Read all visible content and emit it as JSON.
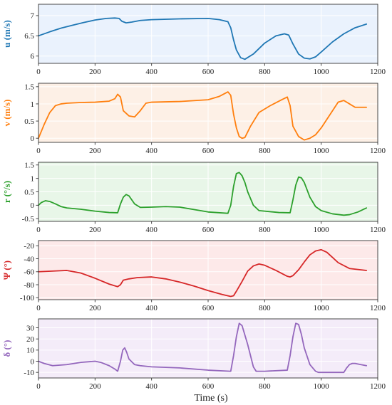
{
  "figure": {
    "xlabel": "Time (s)"
  },
  "chart_data": [
    {
      "type": "line",
      "ylabel": "u (m/s)",
      "color": "#1f77b4",
      "bg": "#eaf2fd",
      "xlim": [
        0,
        1200
      ],
      "ylim": [
        5.82,
        7.28
      ],
      "xticks": [
        0,
        200,
        400,
        600,
        800,
        1000,
        1200
      ],
      "yticks": [
        6,
        6.5,
        7
      ],
      "yticklabels": [
        "6",
        "6.5",
        "7"
      ],
      "series": [
        {
          "x": [
            0,
            40,
            80,
            120,
            160,
            200,
            240,
            270,
            285,
            295,
            310,
            330,
            360,
            400,
            500,
            600,
            640,
            670,
            680,
            690,
            700,
            715,
            730,
            760,
            800,
            840,
            870,
            885,
            900,
            920,
            940,
            960,
            980,
            1000,
            1040,
            1080,
            1120,
            1160
          ],
          "y": [
            6.5,
            6.6,
            6.69,
            6.76,
            6.83,
            6.89,
            6.93,
            6.94,
            6.93,
            6.86,
            6.82,
            6.84,
            6.88,
            6.9,
            6.92,
            6.93,
            6.9,
            6.85,
            6.7,
            6.4,
            6.15,
            5.96,
            5.92,
            6.05,
            6.32,
            6.5,
            6.55,
            6.52,
            6.3,
            6.05,
            5.95,
            5.93,
            5.98,
            6.1,
            6.35,
            6.55,
            6.7,
            6.79
          ]
        }
      ]
    },
    {
      "type": "line",
      "ylabel": "v (m/s)",
      "color": "#ff7f0e",
      "bg": "#fdf0e6",
      "xlim": [
        0,
        1200
      ],
      "ylim": [
        -0.12,
        1.6
      ],
      "xticks": [
        0,
        200,
        400,
        600,
        800,
        1000,
        1200
      ],
      "yticks": [
        0,
        0.5,
        1,
        1.5
      ],
      "yticklabels": [
        "0",
        "0.5",
        "1",
        "1.5"
      ],
      "series": [
        {
          "x": [
            0,
            20,
            40,
            60,
            80,
            100,
            150,
            200,
            250,
            270,
            280,
            290,
            300,
            320,
            340,
            360,
            380,
            400,
            500,
            600,
            640,
            670,
            680,
            690,
            700,
            710,
            720,
            730,
            750,
            780,
            820,
            860,
            880,
            890,
            900,
            920,
            940,
            960,
            980,
            1000,
            1040,
            1060,
            1080,
            1100,
            1120,
            1160
          ],
          "y": [
            0.0,
            0.4,
            0.75,
            0.95,
            1.0,
            1.02,
            1.04,
            1.05,
            1.08,
            1.15,
            1.28,
            1.2,
            0.8,
            0.65,
            0.62,
            0.8,
            1.02,
            1.05,
            1.07,
            1.12,
            1.22,
            1.35,
            1.25,
            0.7,
            0.3,
            0.05,
            0.0,
            0.02,
            0.35,
            0.75,
            0.95,
            1.12,
            1.2,
            0.95,
            0.35,
            0.05,
            -0.05,
            0.0,
            0.1,
            0.3,
            0.8,
            1.05,
            1.1,
            1.0,
            0.9,
            0.9
          ]
        }
      ]
    },
    {
      "type": "line",
      "ylabel": "r (°/s)",
      "color": "#2ca02c",
      "bg": "#e8f6e8",
      "xlim": [
        0,
        1200
      ],
      "ylim": [
        -0.6,
        1.6
      ],
      "xticks": [
        0,
        200,
        400,
        600,
        800,
        1000,
        1200
      ],
      "yticks": [
        -0.5,
        0,
        0.5,
        1,
        1.5
      ],
      "yticklabels": [
        "-0.5",
        "0",
        "0.5",
        "1",
        "1.5"
      ],
      "series": [
        {
          "x": [
            0,
            10,
            25,
            40,
            60,
            80,
            100,
            150,
            200,
            250,
            280,
            290,
            300,
            310,
            320,
            340,
            360,
            400,
            450,
            500,
            600,
            670,
            680,
            690,
            700,
            710,
            720,
            730,
            740,
            760,
            780,
            850,
            890,
            900,
            910,
            920,
            930,
            940,
            960,
            980,
            1000,
            1040,
            1080,
            1100,
            1130,
            1160
          ],
          "y": [
            0.0,
            0.1,
            0.17,
            0.14,
            0.05,
            -0.05,
            -0.1,
            -0.15,
            -0.22,
            -0.27,
            -0.28,
            0.05,
            0.3,
            0.4,
            0.35,
            0.05,
            -0.08,
            -0.07,
            -0.05,
            -0.07,
            -0.25,
            -0.3,
            0.0,
            0.7,
            1.18,
            1.22,
            1.1,
            0.85,
            0.5,
            0.0,
            -0.2,
            -0.27,
            -0.28,
            0.2,
            0.75,
            1.05,
            1.02,
            0.85,
            0.3,
            -0.05,
            -0.2,
            -0.32,
            -0.37,
            -0.35,
            -0.25,
            -0.1
          ]
        }
      ]
    },
    {
      "type": "line",
      "ylabel": "Ψ (°)",
      "color": "#d62728",
      "bg": "#fde9e9",
      "xlim": [
        0,
        1200
      ],
      "ylim": [
        -103,
        -12
      ],
      "xticks": [
        0,
        200,
        400,
        600,
        800,
        1000,
        1200
      ],
      "yticks": [
        -100,
        -80,
        -60,
        -40,
        -20
      ],
      "yticklabels": [
        "-100",
        "-80",
        "-60",
        "-40",
        "-20"
      ],
      "series": [
        {
          "x": [
            0,
            50,
            100,
            150,
            200,
            250,
            280,
            290,
            300,
            320,
            350,
            400,
            450,
            500,
            550,
            600,
            650,
            680,
            690,
            700,
            720,
            740,
            760,
            780,
            800,
            840,
            880,
            890,
            900,
            920,
            940,
            960,
            980,
            1000,
            1020,
            1040,
            1060,
            1100,
            1160
          ],
          "y": [
            -60,
            -59,
            -58,
            -62,
            -70,
            -79,
            -83,
            -80,
            -73,
            -71,
            -69,
            -68,
            -71,
            -76,
            -82,
            -89,
            -95,
            -98,
            -97,
            -90,
            -75,
            -59,
            -51,
            -48,
            -50,
            -58,
            -67,
            -68,
            -66,
            -57,
            -45,
            -34,
            -28,
            -26,
            -30,
            -38,
            -46,
            -55,
            -58
          ]
        }
      ]
    },
    {
      "type": "line",
      "ylabel": "δ (°)",
      "color": "#9467bd",
      "bg": "#f4ecf9",
      "xlim": [
        0,
        1200
      ],
      "ylim": [
        -15,
        38
      ],
      "xticks": [
        0,
        200,
        400,
        600,
        800,
        1000,
        1200
      ],
      "yticks": [
        -10,
        0,
        10,
        20,
        30
      ],
      "yticklabels": [
        "-10",
        "0",
        "10",
        "20",
        "30"
      ],
      "series": [
        {
          "x": [
            0,
            20,
            50,
            100,
            150,
            200,
            220,
            250,
            270,
            280,
            290,
            298,
            305,
            312,
            320,
            340,
            360,
            400,
            500,
            600,
            680,
            690,
            700,
            710,
            720,
            740,
            760,
            770,
            780,
            800,
            880,
            890,
            900,
            910,
            920,
            930,
            940,
            960,
            980,
            990,
            1000,
            1050,
            1080,
            1090,
            1100,
            1110,
            1120,
            1140,
            1160
          ],
          "y": [
            0,
            -2,
            -4,
            -3,
            -1,
            0,
            -1,
            -4,
            -7,
            -9,
            0,
            10,
            12,
            8,
            2,
            -3,
            -4,
            -5,
            -6,
            -8,
            -9,
            5,
            22,
            34,
            32,
            15,
            -5,
            -9,
            -9,
            -9,
            -8,
            5,
            22,
            34,
            33,
            24,
            12,
            -3,
            -9,
            -10,
            -10,
            -10,
            -10,
            -6,
            -3,
            -2,
            -2,
            -3,
            -4
          ]
        }
      ]
    }
  ]
}
